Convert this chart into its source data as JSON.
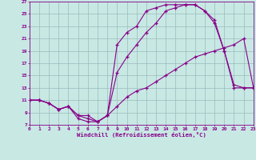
{
  "background_color": "#c8e8e4",
  "line_color": "#880088",
  "grid_color": "#99bbbb",
  "xlabel": "Windchill (Refroidissement éolien,°C)",
  "xlim": [
    0,
    23
  ],
  "ylim": [
    7,
    27
  ],
  "xticks": [
    0,
    1,
    2,
    3,
    4,
    5,
    6,
    7,
    8,
    9,
    10,
    11,
    12,
    13,
    14,
    15,
    16,
    17,
    18,
    19,
    20,
    21,
    22,
    23
  ],
  "yticks": [
    7,
    9,
    11,
    13,
    15,
    17,
    19,
    21,
    23,
    25,
    27
  ],
  "curve1_x": [
    0,
    1,
    2,
    3,
    4,
    5,
    6,
    7,
    8,
    9,
    10,
    11,
    12,
    13,
    14,
    15,
    16,
    17,
    18,
    19,
    20,
    21,
    22,
    23
  ],
  "curve1_y": [
    11,
    11,
    10.5,
    9.5,
    10,
    8,
    7.5,
    7.5,
    8.5,
    10,
    11.5,
    12.5,
    13,
    14,
    15,
    16,
    17,
    18,
    18.5,
    19,
    19.5,
    20,
    21,
    13
  ],
  "curve2_x": [
    0,
    1,
    2,
    3,
    4,
    5,
    6,
    7,
    8,
    9,
    10,
    11,
    12,
    13,
    14,
    15,
    16,
    17,
    18,
    19,
    20,
    21,
    22,
    23
  ],
  "curve2_y": [
    11,
    11,
    10.5,
    9.5,
    10,
    8.5,
    8,
    7.5,
    8.5,
    20,
    22,
    23,
    25.5,
    26,
    26.5,
    26.5,
    26.5,
    26.5,
    25.5,
    24,
    19,
    13,
    13,
    13
  ],
  "curve3_x": [
    0,
    1,
    2,
    3,
    4,
    5,
    6,
    7,
    8,
    9,
    10,
    11,
    12,
    13,
    14,
    15,
    16,
    17,
    18,
    19,
    20,
    21,
    22,
    23
  ],
  "curve3_y": [
    11,
    11,
    10.5,
    9.5,
    10,
    8.5,
    8.5,
    7.5,
    8.5,
    15.5,
    18,
    20,
    22,
    23.5,
    25.5,
    26,
    26.5,
    26.5,
    25.5,
    23.5,
    19,
    13.5,
    13,
    13
  ]
}
